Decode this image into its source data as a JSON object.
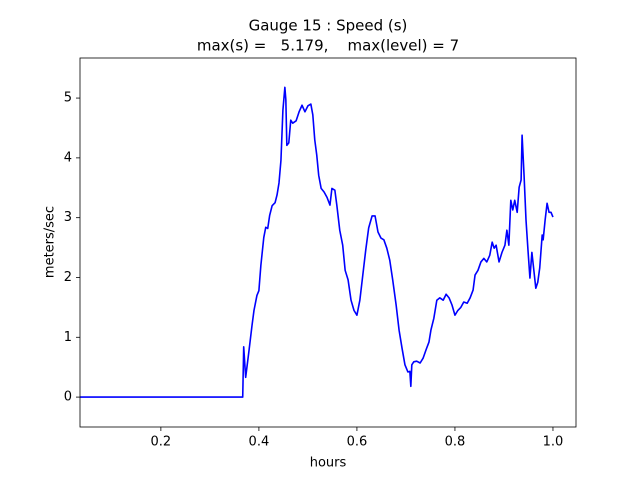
{
  "chart_data": {
    "type": "line",
    "title": "Gauge 15 : Speed (s)",
    "subtitle": "max(s) =   5.179,    max(level) = 7",
    "x_label": "hours",
    "y_label": "meters/sec",
    "x": [
      0.035,
      0.367,
      0.369,
      0.373,
      0.38,
      0.386,
      0.39,
      0.396,
      0.4,
      0.404,
      0.41,
      0.414,
      0.418,
      0.422,
      0.427,
      0.433,
      0.437,
      0.441,
      0.445,
      0.449,
      0.453,
      0.455,
      0.457,
      0.461,
      0.465,
      0.469,
      0.476,
      0.482,
      0.488,
      0.494,
      0.5,
      0.506,
      0.51,
      0.514,
      0.518,
      0.522,
      0.527,
      0.533,
      0.539,
      0.545,
      0.549,
      0.555,
      0.559,
      0.565,
      0.571,
      0.576,
      0.582,
      0.588,
      0.594,
      0.6,
      0.606,
      0.612,
      0.618,
      0.624,
      0.631,
      0.637,
      0.643,
      0.649,
      0.655,
      0.661,
      0.667,
      0.673,
      0.68,
      0.686,
      0.692,
      0.698,
      0.704,
      0.708,
      0.71,
      0.712,
      0.716,
      0.722,
      0.729,
      0.735,
      0.741,
      0.747,
      0.751,
      0.757,
      0.763,
      0.769,
      0.776,
      0.782,
      0.788,
      0.794,
      0.8,
      0.806,
      0.812,
      0.818,
      0.825,
      0.831,
      0.837,
      0.841,
      0.847,
      0.853,
      0.859,
      0.865,
      0.871,
      0.876,
      0.88,
      0.884,
      0.89,
      0.896,
      0.902,
      0.906,
      0.91,
      0.914,
      0.918,
      0.922,
      0.927,
      0.931,
      0.935,
      0.937,
      0.941,
      0.945,
      0.949,
      0.953,
      0.957,
      0.961,
      0.965,
      0.969,
      0.973,
      0.978,
      0.98,
      0.984,
      0.988,
      0.992,
      0.996,
      1.0
    ],
    "series": [
      {
        "color": "#0000ff",
        "values": [
          0,
          0,
          0.84,
          0.33,
          0.79,
          1.2,
          1.45,
          1.7,
          1.78,
          2.2,
          2.67,
          2.84,
          2.82,
          3.04,
          3.2,
          3.25,
          3.38,
          3.58,
          3.96,
          4.8,
          5.179,
          4.97,
          4.21,
          4.25,
          4.63,
          4.58,
          4.62,
          4.77,
          4.88,
          4.77,
          4.87,
          4.9,
          4.72,
          4.3,
          4.05,
          3.71,
          3.49,
          3.43,
          3.34,
          3.21,
          3.49,
          3.46,
          3.21,
          2.79,
          2.54,
          2.12,
          1.96,
          1.62,
          1.45,
          1.37,
          1.62,
          2.04,
          2.46,
          2.83,
          3.03,
          3.03,
          2.76,
          2.66,
          2.63,
          2.49,
          2.29,
          1.96,
          1.54,
          1.12,
          0.82,
          0.54,
          0.42,
          0.43,
          0.18,
          0.54,
          0.59,
          0.6,
          0.57,
          0.65,
          0.79,
          0.92,
          1.12,
          1.32,
          1.62,
          1.66,
          1.62,
          1.72,
          1.66,
          1.54,
          1.37,
          1.45,
          1.5,
          1.59,
          1.57,
          1.66,
          1.79,
          2.04,
          2.12,
          2.26,
          2.32,
          2.26,
          2.37,
          2.59,
          2.49,
          2.54,
          2.26,
          2.42,
          2.54,
          2.79,
          2.54,
          3.29,
          3.13,
          3.29,
          3.09,
          3.51,
          3.63,
          4.38,
          3.71,
          2.96,
          2.46,
          1.99,
          2.42,
          2.12,
          1.82,
          1.92,
          2.16,
          2.71,
          2.63,
          2.96,
          3.24,
          3.09,
          3.09,
          3.01
        ]
      }
    ],
    "xlim": [
      0.035,
      1.047
    ],
    "xticks": [
      0.2,
      0.4,
      0.6,
      0.8,
      {
        "value": 1,
        "label": "1.0"
      }
    ],
    "ylim": [
      -0.5,
      5.67
    ],
    "yticks": [
      0,
      1,
      2,
      3,
      4,
      5
    ],
    "grid": false
  }
}
